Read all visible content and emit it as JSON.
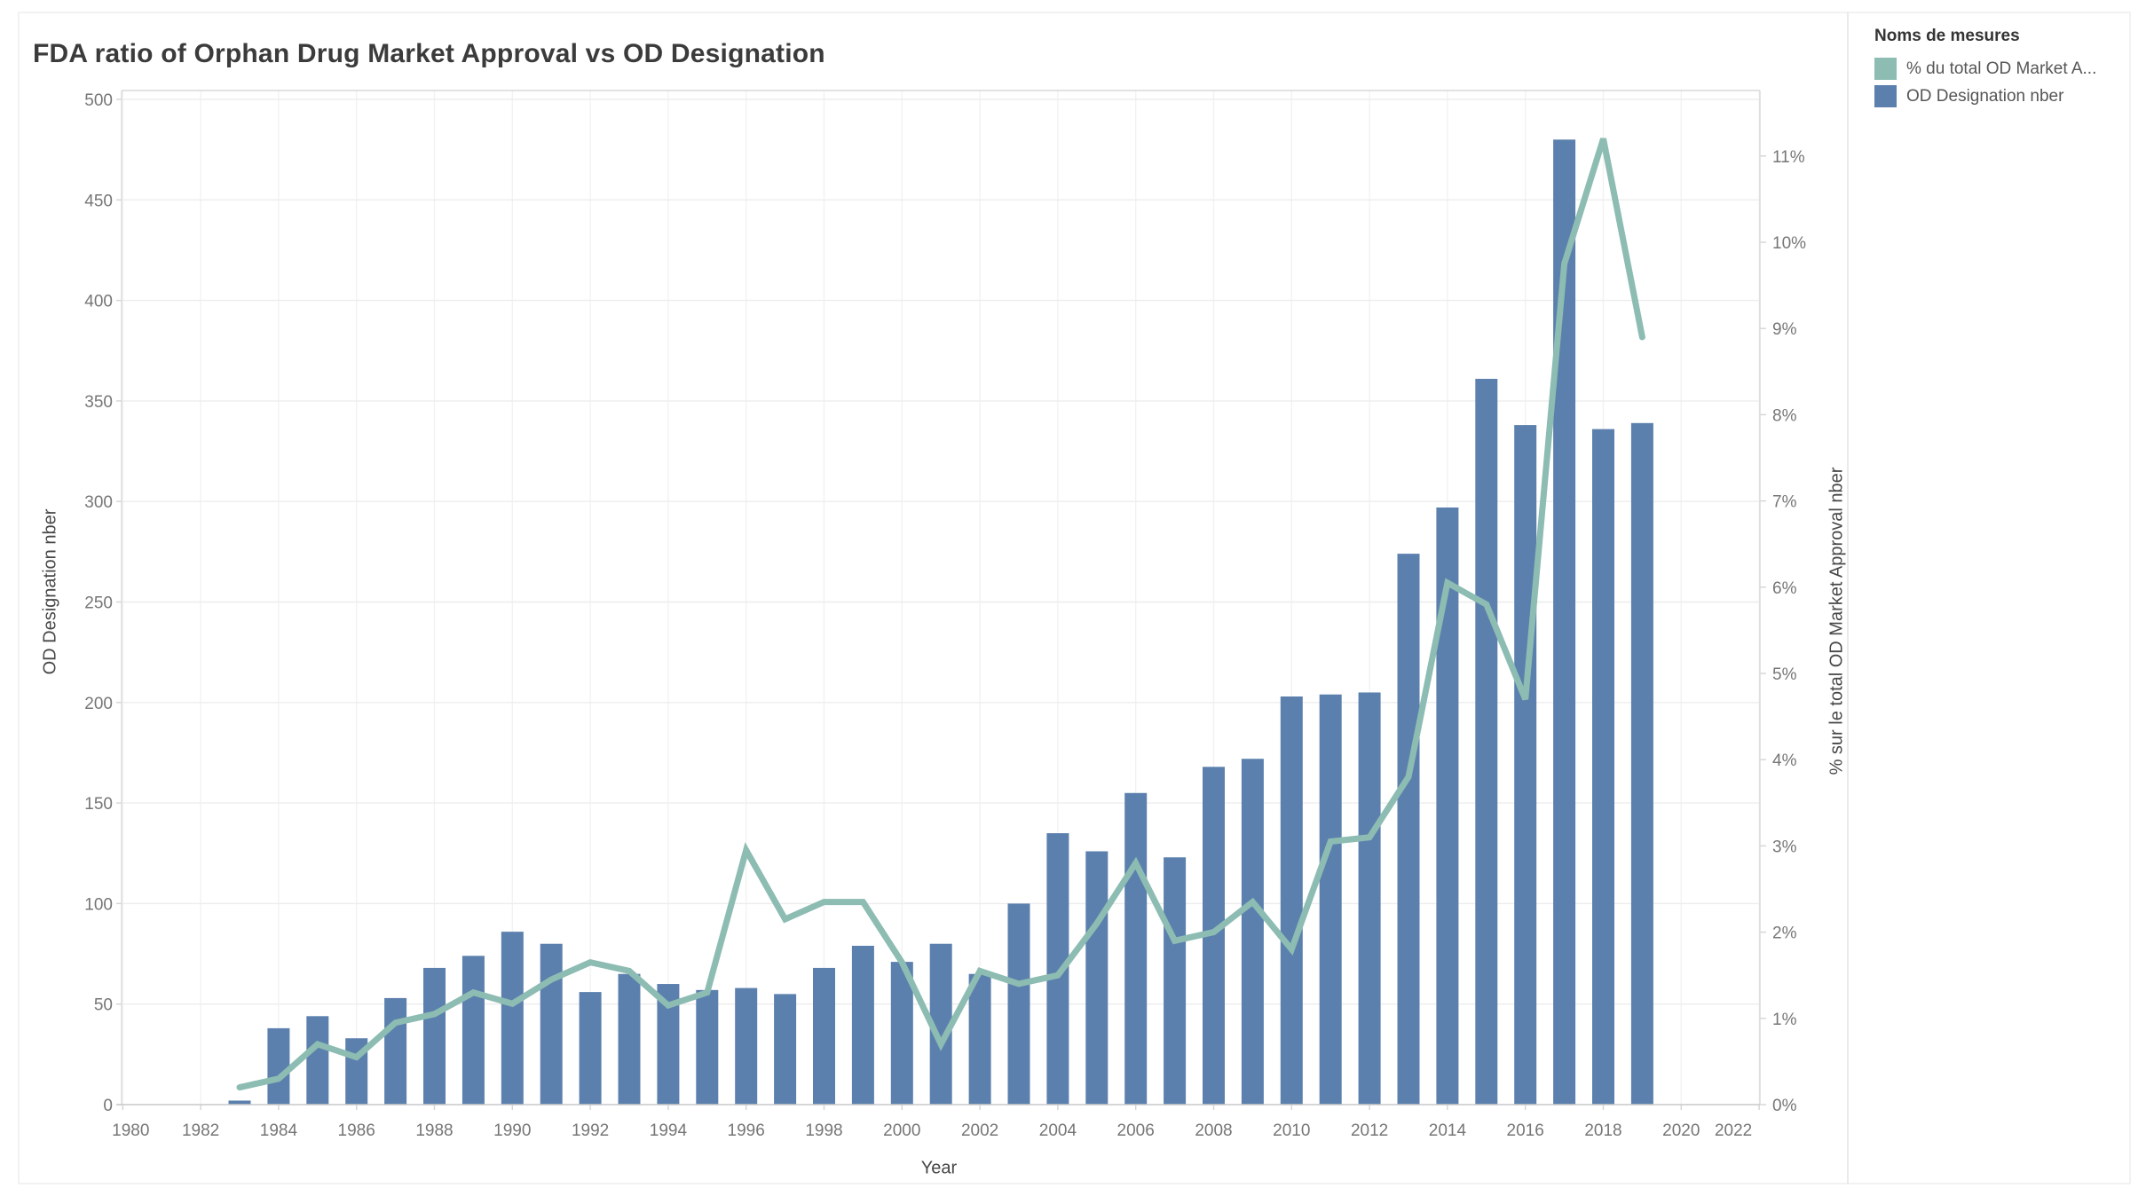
{
  "title": "FDA ratio of Orphan Drug Market Approval vs OD Designation",
  "legend": {
    "title": "Noms de mesures",
    "items": [
      {
        "label": "% du total OD Market A...",
        "color": "#8cbcb2"
      },
      {
        "label": "OD Designation nber",
        "color": "#5c80ad"
      }
    ]
  },
  "chart_data": {
    "type": "combo-bar-line",
    "title": "FDA ratio of Orphan Drug Market Approval vs OD Designation",
    "xlabel": "Year",
    "ylabel_left": "OD Designation nber",
    "ylabel_right": "% sur le total OD Market Approval nber",
    "x": [
      1983,
      1984,
      1985,
      1986,
      1987,
      1988,
      1989,
      1990,
      1991,
      1992,
      1993,
      1994,
      1995,
      1996,
      1997,
      1998,
      1999,
      2000,
      2001,
      2002,
      2003,
      2004,
      2005,
      2006,
      2007,
      2008,
      2009,
      2010,
      2011,
      2012,
      2013,
      2014,
      2015,
      2016,
      2017,
      2018,
      2019
    ],
    "series": [
      {
        "name": "OD Designation nber",
        "type": "bar",
        "axis": "left",
        "color": "#5c80ad",
        "values": [
          2,
          38,
          44,
          33,
          53,
          68,
          74,
          86,
          80,
          56,
          65,
          60,
          57,
          58,
          55,
          68,
          79,
          71,
          80,
          65,
          100,
          135,
          126,
          155,
          123,
          168,
          172,
          203,
          204,
          205,
          274,
          297,
          361,
          338,
          480,
          336,
          339
        ]
      },
      {
        "name": "% du total OD Market Approval nber",
        "type": "line",
        "axis": "right",
        "color": "#8cbcb2",
        "values": [
          0.2,
          0.3,
          0.7,
          0.55,
          0.95,
          1.05,
          1.3,
          1.17,
          1.45,
          1.65,
          1.55,
          1.15,
          1.3,
          2.95,
          2.15,
          2.35,
          2.35,
          1.65,
          0.7,
          1.55,
          1.4,
          1.5,
          2.1,
          2.8,
          1.9,
          2.0,
          2.35,
          1.8,
          3.05,
          3.1,
          3.8,
          6.05,
          5.8,
          4.7,
          9.75,
          11.2,
          8.9
        ]
      }
    ],
    "ylim_left": [
      0,
      500
    ],
    "ylim_right_pct": [
      0,
      11.7
    ],
    "left_ticks": [
      0,
      50,
      100,
      150,
      200,
      250,
      300,
      350,
      400,
      450,
      500
    ],
    "right_tick_labels": [
      "0%",
      "1%",
      "2%",
      "3%",
      "4%",
      "5%",
      "6%",
      "7%",
      "8%",
      "9%",
      "10%",
      "11%"
    ],
    "x_ticks": [
      1980,
      1982,
      1984,
      1986,
      1988,
      1990,
      1992,
      1994,
      1996,
      1998,
      2000,
      2002,
      2004,
      2006,
      2008,
      2010,
      2012,
      2014,
      2016,
      2018,
      2020,
      2022
    ],
    "grid": true,
    "legend_position": "top-right"
  }
}
